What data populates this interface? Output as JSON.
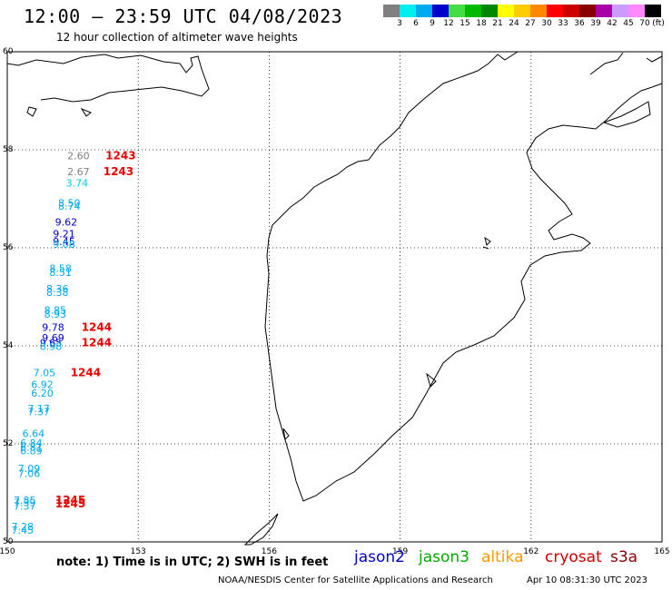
{
  "header": {
    "title": "12:00 — 23:59 UTC 04/08/2023",
    "subtitle": "12 hour collection of altimeter wave heights"
  },
  "colorbar": {
    "colors": [
      "#808080",
      "#00eeee",
      "#00aaee",
      "#0000cc",
      "#44dd44",
      "#00bb00",
      "#008800",
      "#ffff00",
      "#ffcc00",
      "#ff8800",
      "#ff0000",
      "#cc0000",
      "#880000",
      "#aa00aa",
      "#cc99ff",
      "#ff88ff",
      "#000000"
    ],
    "ticks": [
      "3",
      "6",
      "9",
      "12",
      "15",
      "18",
      "21",
      "24",
      "27",
      "30",
      "33",
      "36",
      "39",
      "42",
      "45",
      "70"
    ],
    "unit": "(ft)"
  },
  "map": {
    "lon_ticks": [
      "150",
      "153",
      "156",
      "159",
      "162",
      "165"
    ],
    "lat_ticks": [
      "60",
      "58",
      "56",
      "54",
      "52",
      "50"
    ]
  },
  "observations": [
    {
      "lon": 151.63,
      "lat": 57.81,
      "text": "2.60",
      "color": "#808080"
    },
    {
      "lon": 151.63,
      "lat": 57.48,
      "text": "2.67",
      "color": "#808080"
    },
    {
      "lon": 151.6,
      "lat": 57.25,
      "text": "3.74",
      "color": "#00ccee"
    },
    {
      "lon": 151.42,
      "lat": 56.84,
      "text": "8.50",
      "color": "#00aaee"
    },
    {
      "lon": 151.42,
      "lat": 56.78,
      "text": "8.74",
      "color": "#00aaee"
    },
    {
      "lon": 151.35,
      "lat": 56.45,
      "text": "9.62",
      "color": "#0000cc"
    },
    {
      "lon": 151.3,
      "lat": 56.21,
      "text": "9.21",
      "color": "#0000cc"
    },
    {
      "lon": 151.3,
      "lat": 56.06,
      "text": "9.45",
      "color": "#0000cc"
    },
    {
      "lon": 151.3,
      "lat": 56.0,
      "text": "9.08",
      "color": "#00aaee"
    },
    {
      "lon": 151.22,
      "lat": 55.51,
      "text": "8.58",
      "color": "#00aaee"
    },
    {
      "lon": 151.22,
      "lat": 55.43,
      "text": "8.51",
      "color": "#00aaee"
    },
    {
      "lon": 151.15,
      "lat": 55.09,
      "text": "8.36",
      "color": "#00aaee"
    },
    {
      "lon": 151.15,
      "lat": 55.02,
      "text": "8.38",
      "color": "#00aaee"
    },
    {
      "lon": 151.1,
      "lat": 54.66,
      "text": "8.85",
      "color": "#00aaee"
    },
    {
      "lon": 151.1,
      "lat": 54.57,
      "text": "8.93",
      "color": "#00aaee"
    },
    {
      "lon": 151.05,
      "lat": 54.31,
      "text": "9.78",
      "color": "#0000cc"
    },
    {
      "lon": 151.05,
      "lat": 54.09,
      "text": "9.69",
      "color": "#0000cc"
    },
    {
      "lon": 151.0,
      "lat": 53.99,
      "text": "9.65",
      "color": "#0000cc"
    },
    {
      "lon": 151.0,
      "lat": 53.92,
      "text": "8.98",
      "color": "#00aaee"
    },
    {
      "lon": 150.85,
      "lat": 53.38,
      "text": "7.05",
      "color": "#00aaee"
    },
    {
      "lon": 150.8,
      "lat": 53.14,
      "text": "6.92",
      "color": "#00aaee"
    },
    {
      "lon": 150.8,
      "lat": 52.96,
      "text": "6.20",
      "color": "#00aaee"
    },
    {
      "lon": 150.72,
      "lat": 52.65,
      "text": "7.17",
      "color": "#00aaee"
    },
    {
      "lon": 150.72,
      "lat": 52.58,
      "text": "7.37",
      "color": "#00aaee"
    },
    {
      "lon": 150.6,
      "lat": 52.14,
      "text": "6.64",
      "color": "#00aaee"
    },
    {
      "lon": 150.55,
      "lat": 51.94,
      "text": "6.84",
      "color": "#00aaee"
    },
    {
      "lon": 150.55,
      "lat": 51.86,
      "text": "6.81",
      "color": "#00aaee"
    },
    {
      "lon": 150.55,
      "lat": 51.79,
      "text": "6.89",
      "color": "#00aaee"
    },
    {
      "lon": 150.5,
      "lat": 51.43,
      "text": "7.09",
      "color": "#00aaee"
    },
    {
      "lon": 150.5,
      "lat": 51.32,
      "text": "7.06",
      "color": "#00aaee"
    },
    {
      "lon": 150.4,
      "lat": 50.78,
      "text": "7.85",
      "color": "#00aaee"
    },
    {
      "lon": 150.4,
      "lat": 50.73,
      "text": "7.39",
      "color": "#00aaee"
    },
    {
      "lon": 150.4,
      "lat": 50.66,
      "text": "7.37",
      "color": "#00aaee"
    },
    {
      "lon": 150.35,
      "lat": 50.24,
      "text": "7.28",
      "color": "#00aaee"
    },
    {
      "lon": 150.35,
      "lat": 50.17,
      "text": "7.45",
      "color": "#00aaee"
    }
  ],
  "pass_labels": [
    {
      "lon": 152.25,
      "lat": 57.81,
      "text": "1243"
    },
    {
      "lon": 152.2,
      "lat": 57.48,
      "text": "1243"
    },
    {
      "lon": 151.7,
      "lat": 54.31,
      "text": "1244"
    },
    {
      "lon": 151.7,
      "lat": 53.99,
      "text": "1244"
    },
    {
      "lon": 151.45,
      "lat": 53.38,
      "text": "1244"
    },
    {
      "lon": 151.1,
      "lat": 50.78,
      "text": "1245"
    },
    {
      "lon": 151.1,
      "lat": 50.7,
      "text": "1245"
    }
  ],
  "footer": {
    "note": "note:  1) Time is in UTC;  2) SWH is in feet",
    "legend": [
      {
        "name": "jason2",
        "color": "#0000cc"
      },
      {
        "name": "jason3",
        "color": "#00aa00"
      },
      {
        "name": "altika",
        "color": "#ff9900"
      },
      {
        "name": "cryosat",
        "color": "#cc0000"
      },
      {
        "name": "s3a",
        "color": "#880000"
      }
    ],
    "credit": "NOAA/NESDIS Center for Satellite Applications and Research",
    "timestamp": "Apr 10 08:31:30 UTC 2023"
  }
}
